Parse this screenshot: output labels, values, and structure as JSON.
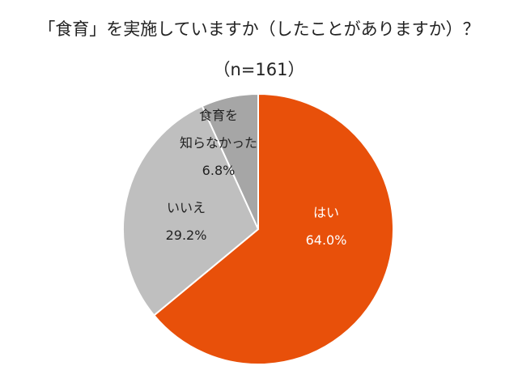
{
  "title": "「食育」を実施していますか（したことがありますか）？",
  "subtitle": "（n=161）",
  "chart_data": {
    "type": "pie",
    "title": "「食育」を実施していますか（したことがありますか）？",
    "subtitle": "（n=161）",
    "slices": [
      {
        "label": "はい",
        "value": 64.0,
        "display": "64.0%",
        "color": "#E8500A",
        "label_color": "#ffffff"
      },
      {
        "label": "いいえ",
        "value": 29.2,
        "display": "29.2%",
        "color": "#BFBFBF",
        "label_color": "#222222"
      },
      {
        "label": "食育を知らなかった",
        "value": 6.8,
        "display": "6.8%",
        "color": "#A6A6A6",
        "label_color": "#222222",
        "label_lines": [
          "食育を",
          "知らなかった"
        ]
      }
    ],
    "start": "12 o'clock",
    "direction": "clockwise"
  }
}
